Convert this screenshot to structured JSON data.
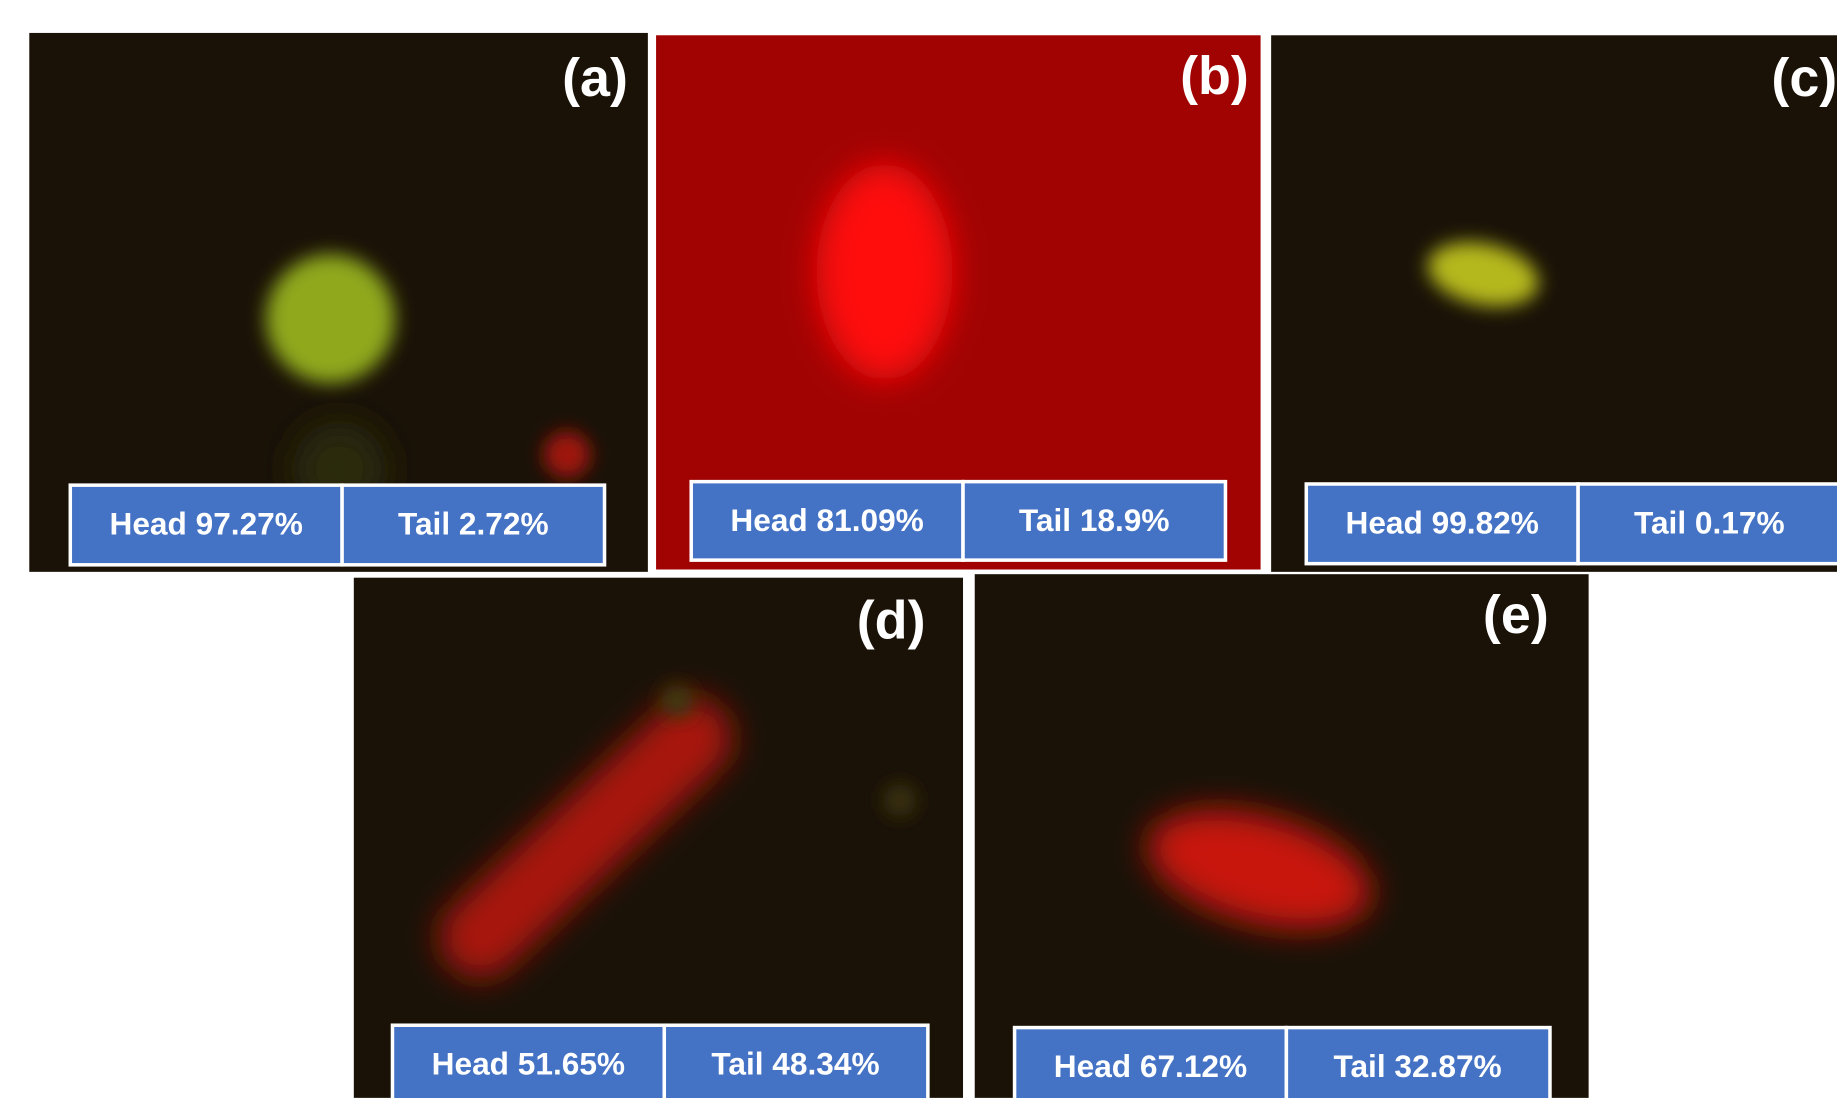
{
  "panels": [
    {
      "label": "(a)",
      "head": "Head 97.27%",
      "tail": "Tail 2.72%"
    },
    {
      "label": "(b)",
      "head": "Head 81.09%",
      "tail": "Tail 18.9%"
    },
    {
      "label": "(c)",
      "head": "Head 99.82%",
      "tail": "Tail 0.17%"
    },
    {
      "label": "(d)",
      "head": "Head 51.65%",
      "tail": "Tail 48.34%"
    },
    {
      "label": "(e)",
      "head": "Head 67.12%",
      "tail": "Tail 32.87%"
    }
  ]
}
